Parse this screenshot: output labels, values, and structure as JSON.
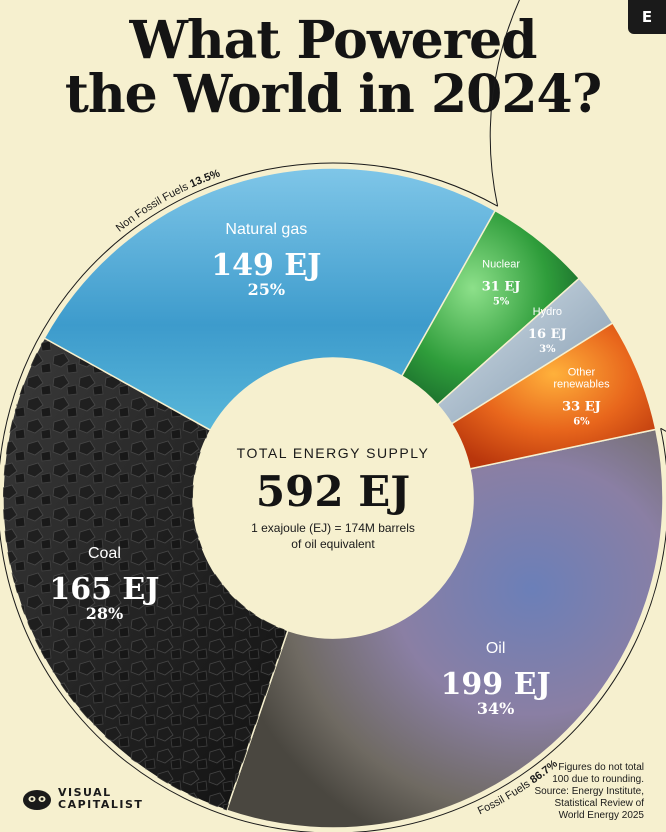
{
  "badge": "E",
  "title_lines": [
    "What Powered",
    "the World in 2024?"
  ],
  "center": {
    "heading": "TOTAL ENERGY SUPPLY",
    "total": "592 EJ",
    "note_lines": [
      "1 exajoule (EJ) = 174M barrels",
      "of oil equivalent"
    ]
  },
  "groups": {
    "non_fossil": {
      "label": "Non Fossil Fuels",
      "share": "13.5%"
    },
    "fossil": {
      "label": "Fossil Fuels",
      "share": "86.7%"
    }
  },
  "footnote": [
    "Figures do not total",
    "100 due to rounding.",
    "Source: Energy Institute,",
    "Statistical Review of",
    "World Energy 2025"
  ],
  "logo": {
    "line1": "VISUAL",
    "line2": "CAPITALIST"
  },
  "colors": {
    "background": "#f6f0cf",
    "oil": "#7d7a8c",
    "coal": "#262626",
    "natural_gas": "#4ea6d3",
    "nuclear": "#2e9a3c",
    "hydro": "#9fb4c6",
    "other_renewables": "#e0641a"
  },
  "chart_data": {
    "type": "pie",
    "donut": true,
    "unit": "EJ",
    "total": 592,
    "slices": [
      {
        "name": "Oil",
        "value": 199,
        "value_label": "199 EJ",
        "pct": "34%",
        "color_key": "oil",
        "icon": "oil-slick-texture"
      },
      {
        "name": "Coal",
        "value": 165,
        "value_label": "165 EJ",
        "pct": "28%",
        "color_key": "coal",
        "icon": "coal-texture"
      },
      {
        "name": "Natural gas",
        "value": 149,
        "value_label": "149 EJ",
        "pct": "25%",
        "color_key": "natural_gas",
        "icon": "gas-flame-texture"
      },
      {
        "name": "Nuclear",
        "value": 31,
        "value_label": "31 EJ",
        "pct": "5%",
        "color_key": "nuclear",
        "icon": "nuclear-glow-texture"
      },
      {
        "name": "Hydro",
        "value": 16,
        "value_label": "16 EJ",
        "pct": "3%",
        "color_key": "hydro",
        "icon": "water-texture"
      },
      {
        "name": "Other\nrenewables",
        "value": 33,
        "value_label": "33 EJ",
        "pct": "6%",
        "color_key": "other_renewables",
        "icon": "sun-texture"
      }
    ]
  }
}
